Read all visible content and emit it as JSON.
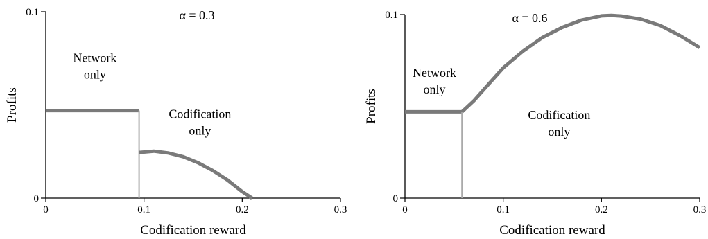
{
  "chart_data": [
    {
      "type": "line",
      "title": "α = 0.3",
      "xlabel": "Codification reward",
      "ylabel": "Profits",
      "xlim": [
        0,
        0.3
      ],
      "ylim": [
        0,
        0.1
      ],
      "xticks": [
        0,
        0.1,
        0.2,
        0.3
      ],
      "xtick_labels": [
        "0",
        "0.1",
        "0.2",
        "0.3"
      ],
      "yticks": [
        0,
        0.1
      ],
      "ytick_labels": [
        "0",
        "0.1"
      ],
      "grid": false,
      "legend": "none",
      "annotations": [
        {
          "lines": [
            "Network",
            "only"
          ],
          "x": 0.05,
          "y": 0.073
        },
        {
          "lines": [
            "Codification",
            "only"
          ],
          "x": 0.157,
          "y": 0.043
        }
      ],
      "series": [
        {
          "role": "profit-network",
          "color": "#7a7a7a",
          "x": [
            0,
            0.095
          ],
          "y": [
            0.047,
            0.047
          ]
        },
        {
          "role": "switch-line",
          "color": "#aaaaaa",
          "x": [
            0.095,
            0.095
          ],
          "y": [
            0,
            0.047
          ]
        },
        {
          "role": "profit-codification",
          "color": "#7a7a7a",
          "x": [
            0.095,
            0.11,
            0.125,
            0.14,
            0.155,
            0.17,
            0.185,
            0.2,
            0.21
          ],
          "y": [
            0.0245,
            0.0252,
            0.0242,
            0.0222,
            0.019,
            0.0148,
            0.0097,
            0.0035,
            0
          ]
        }
      ]
    },
    {
      "type": "line",
      "title": "α = 0.6",
      "xlabel": "Codification reward",
      "ylabel": "Profits",
      "xlim": [
        0,
        0.3
      ],
      "ylim": [
        0,
        0.1
      ],
      "xticks": [
        0,
        0.1,
        0.2,
        0.3
      ],
      "xtick_labels": [
        "0",
        "0.1",
        "0.2",
        "0.3"
      ],
      "yticks": [
        0,
        0.1
      ],
      "ytick_labels": [
        "0",
        "0.1"
      ],
      "grid": false,
      "legend": "none",
      "annotations": [
        {
          "lines": [
            "Network",
            "only"
          ],
          "x": 0.03,
          "y": 0.066
        },
        {
          "lines": [
            "Codification",
            "only"
          ],
          "x": 0.157,
          "y": 0.043
        }
      ],
      "series": [
        {
          "role": "profit-network",
          "color": "#7a7a7a",
          "x": [
            0,
            0.058
          ],
          "y": [
            0.047,
            0.047
          ]
        },
        {
          "role": "switch-line",
          "color": "#aaaaaa",
          "x": [
            0.058,
            0.058
          ],
          "y": [
            0,
            0.047
          ]
        },
        {
          "role": "profit-codification",
          "color": "#7a7a7a",
          "x": [
            0.058,
            0.07,
            0.085,
            0.1,
            0.12,
            0.14,
            0.16,
            0.18,
            0.2,
            0.21,
            0.22,
            0.24,
            0.26,
            0.28,
            0.3
          ],
          "y": [
            0.047,
            0.053,
            0.062,
            0.071,
            0.08,
            0.0875,
            0.093,
            0.097,
            0.0993,
            0.0995,
            0.0992,
            0.0975,
            0.094,
            0.0885,
            0.082
          ]
        }
      ]
    }
  ]
}
